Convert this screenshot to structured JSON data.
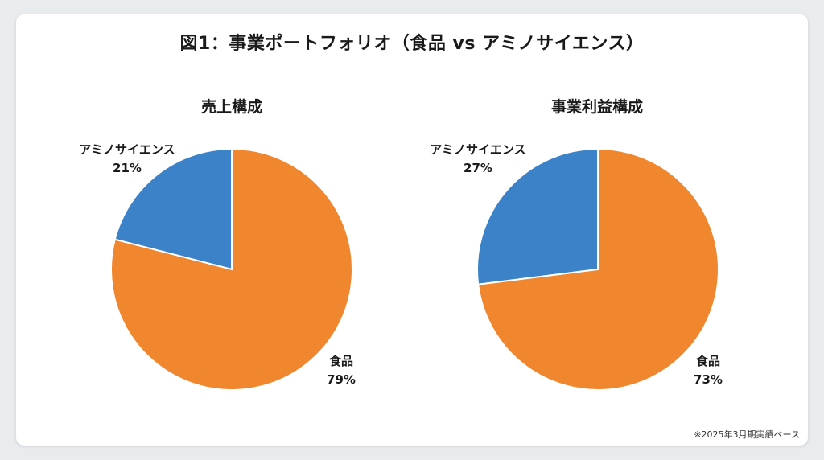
{
  "title": "図1：事業ポートフォリオ（食品 vs アミノサイエンス）",
  "footnote": "※2025年3月期実績ベース",
  "colors": {
    "food": "#f0862e",
    "amino": "#3b82c8"
  },
  "chart_data": [
    {
      "type": "pie",
      "title": "売上構成",
      "slices": [
        {
          "label": "アミノサイエンス",
          "value": 21,
          "value_label": "21%"
        },
        {
          "label": "食品",
          "value": 79,
          "value_label": "79%"
        }
      ]
    },
    {
      "type": "pie",
      "title": "事業利益構成",
      "slices": [
        {
          "label": "アミノサイエンス",
          "value": 27,
          "value_label": "27%"
        },
        {
          "label": "食品",
          "value": 73,
          "value_label": "73%"
        }
      ]
    }
  ]
}
